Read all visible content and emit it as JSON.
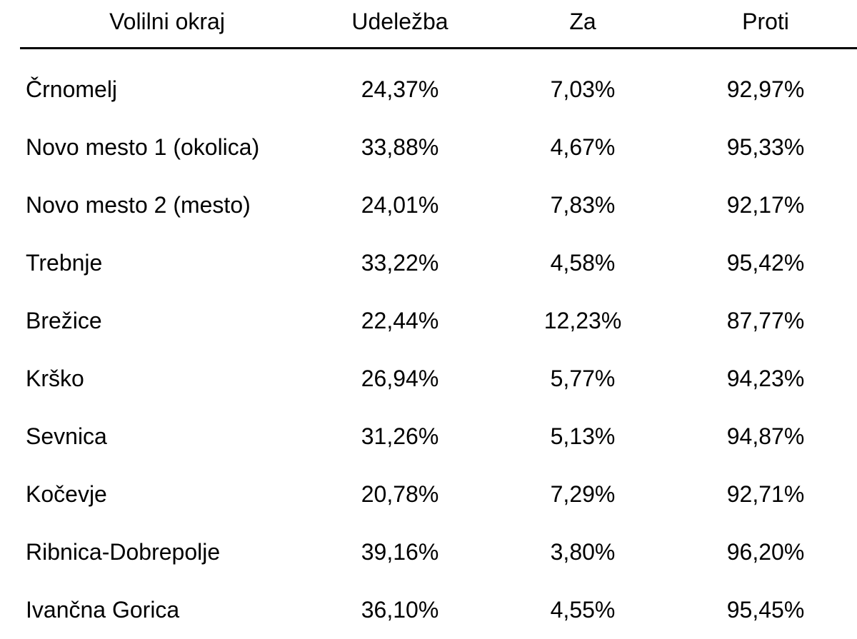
{
  "table": {
    "headers": {
      "district": "Volilni okraj",
      "turnout": "Udeležba",
      "for": "Za",
      "against": "Proti"
    },
    "rows": [
      {
        "district": "Črnomelj",
        "turnout": "24,37%",
        "for": "7,03%",
        "against": "92,97%"
      },
      {
        "district": "Novo mesto 1 (okolica)",
        "turnout": "33,88%",
        "for": "4,67%",
        "against": "95,33%"
      },
      {
        "district": "Novo mesto 2 (mesto)",
        "turnout": "24,01%",
        "for": "7,83%",
        "against": "92,17%"
      },
      {
        "district": "Trebnje",
        "turnout": "33,22%",
        "for": "4,58%",
        "against": "95,42%"
      },
      {
        "district": "Brežice",
        "turnout": "22,44%",
        "for": "12,23%",
        "against": "87,77%"
      },
      {
        "district": "Krško",
        "turnout": "26,94%",
        "for": "5,77%",
        "against": "94,23%"
      },
      {
        "district": "Sevnica",
        "turnout": "31,26%",
        "for": "5,13%",
        "against": "94,87%"
      },
      {
        "district": "Kočevje",
        "turnout": "20,78%",
        "for": "7,29%",
        "against": "92,71%"
      },
      {
        "district": "Ribnica-Dobrepolje",
        "turnout": "39,16%",
        "for": "3,80%",
        "against": "96,20%"
      },
      {
        "district": "Ivančna Gorica",
        "turnout": "36,10%",
        "for": "4,55%",
        "against": "95,45%"
      }
    ]
  }
}
